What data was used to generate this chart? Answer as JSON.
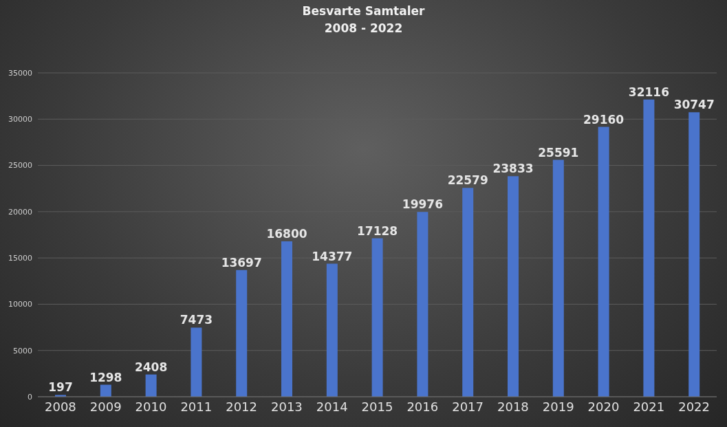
{
  "chart_data": {
    "type": "bar",
    "title": "Besvarte Samtaler",
    "subtitle": "2008 - 2022",
    "categories": [
      "2008",
      "2009",
      "2010",
      "2011",
      "2012",
      "2013",
      "2014",
      "2015",
      "2016",
      "2017",
      "2018",
      "2019",
      "2020",
      "2021",
      "2022"
    ],
    "values": [
      197,
      1298,
      2408,
      7473,
      13697,
      16800,
      14377,
      17128,
      19976,
      22579,
      23833,
      25591,
      29160,
      32116,
      30747
    ],
    "color": "#4a74cc",
    "ylim": [
      0,
      35000
    ],
    "yticks": [
      0,
      5000,
      10000,
      15000,
      20000,
      25000,
      30000,
      35000
    ],
    "grid": "y",
    "data_labels": true
  }
}
